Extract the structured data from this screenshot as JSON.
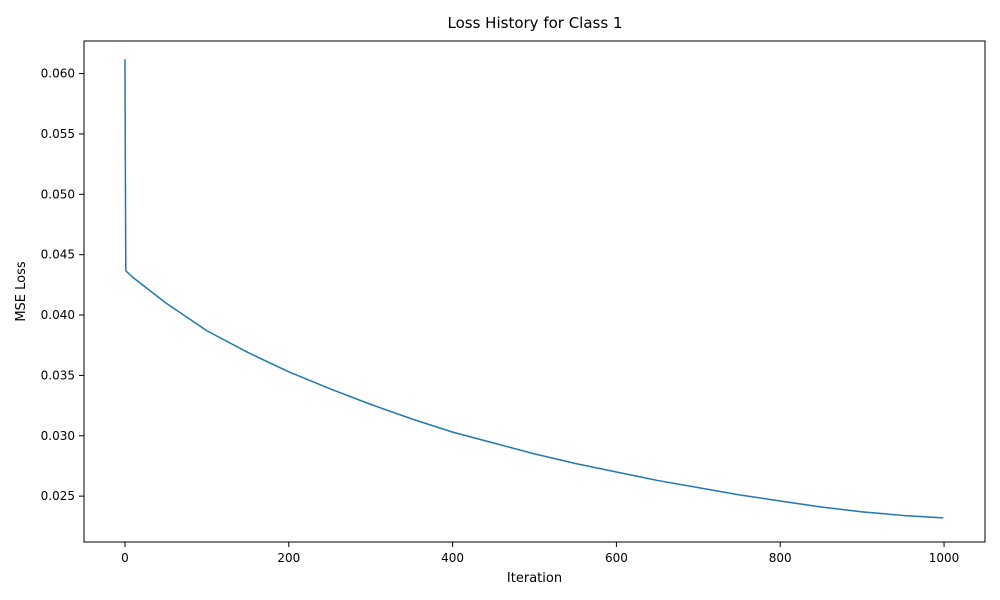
{
  "chart_data": {
    "type": "line",
    "title": "Loss History for Class 1",
    "xlabel": "Iteration",
    "ylabel": "MSE Loss",
    "xlim": [
      -50,
      1050
    ],
    "ylim": [
      0.0212,
      0.0627
    ],
    "xticks": [
      0,
      200,
      400,
      600,
      800,
      1000
    ],
    "xtick_labels": [
      "0",
      "200",
      "400",
      "600",
      "800",
      "1000"
    ],
    "yticks": [
      0.025,
      0.03,
      0.035,
      0.04,
      0.045,
      0.05,
      0.055,
      0.06
    ],
    "ytick_labels": [
      "0.025",
      "0.030",
      "0.035",
      "0.040",
      "0.045",
      "0.050",
      "0.055",
      "0.060"
    ],
    "grid": false,
    "line_color": "#1f77b4",
    "series": [
      {
        "x": [
          0,
          1,
          2,
          10,
          50,
          100,
          150,
          200,
          250,
          300,
          350,
          400,
          450,
          500,
          550,
          600,
          650,
          700,
          750,
          800,
          850,
          900,
          950,
          999
        ],
        "values": [
          0.0612,
          0.0437,
          0.0436,
          0.0431,
          0.041,
          0.0387,
          0.0369,
          0.0353,
          0.0339,
          0.0326,
          0.0314,
          0.0303,
          0.0294,
          0.0285,
          0.0277,
          0.027,
          0.0263,
          0.0257,
          0.0251,
          0.0246,
          0.0241,
          0.0237,
          0.0234,
          0.0232
        ]
      }
    ]
  }
}
